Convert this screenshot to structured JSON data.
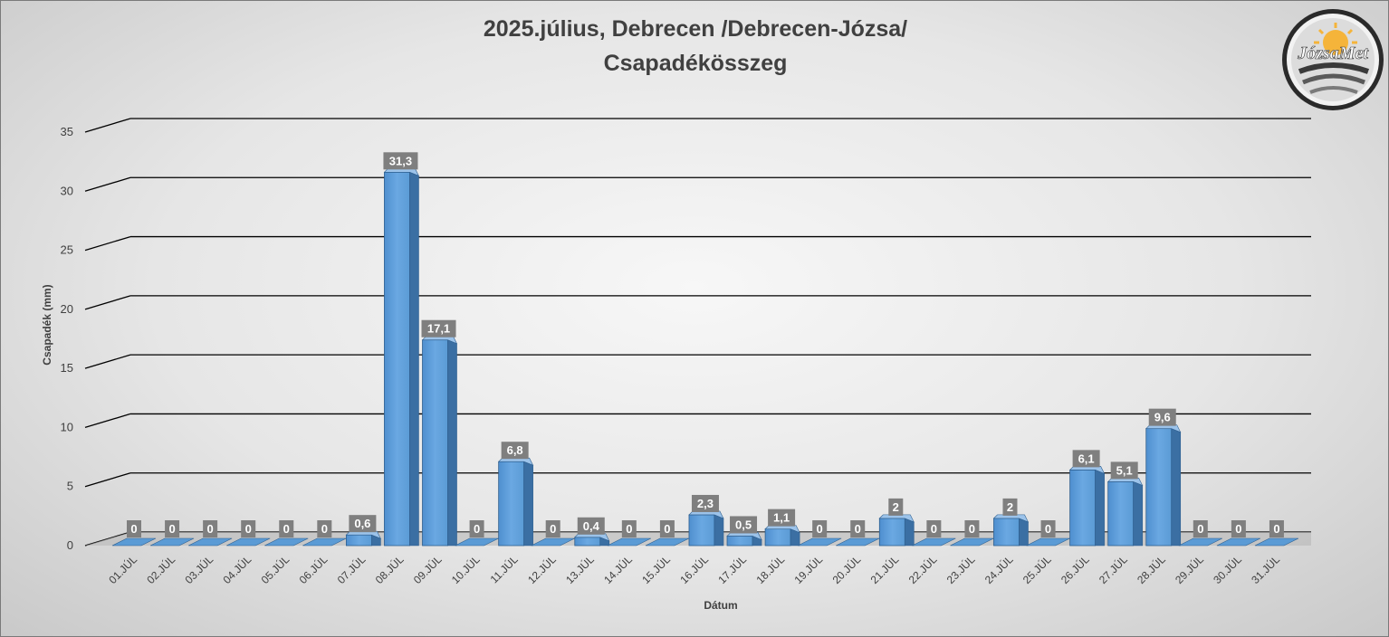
{
  "chart_data": {
    "type": "bar",
    "title": "2025.július, Debrecen /Debrecen-Józsa/",
    "subtitle": "Csapadékösszeg",
    "xlabel": "Dátum",
    "ylabel": "Csapadék (mm)",
    "ylim": [
      0,
      35
    ],
    "yticks": [
      "0",
      "5",
      "10",
      "15",
      "20",
      "25",
      "30",
      "35"
    ],
    "grid": true,
    "categories": [
      "01.JÚL",
      "02.JÚL",
      "03.JÚL",
      "04.JÚL",
      "05.JÚL",
      "06.JÚL",
      "07.JÚL",
      "08.JÚL",
      "09.JÚL",
      "10.JÚL",
      "11.JÚL",
      "12.JÚL",
      "13.JÚL",
      "14.JÚL",
      "15.JÚL",
      "16.JÚL",
      "17.JÚL",
      "18.JÚL",
      "19.JÚL",
      "20.JÚL",
      "21.JÚL",
      "22.JÚL",
      "23.JÚL",
      "24.JÚL",
      "25.JÚL",
      "26.JÚL",
      "27.JÚL",
      "28.JÚL",
      "29.JÚL",
      "30.JÚL",
      "31.JÚL"
    ],
    "values": [
      0,
      0,
      0,
      0,
      0,
      0,
      0.6,
      31.3,
      17.1,
      0,
      6.8,
      0,
      0.4,
      0,
      0,
      2.3,
      0.5,
      1.1,
      0,
      0,
      2,
      0,
      0,
      2,
      0,
      6.1,
      5.1,
      9.6,
      0,
      0,
      0
    ],
    "data_labels": [
      "0",
      "0",
      "0",
      "0",
      "0",
      "0",
      "0,6",
      "31,3",
      "17,1",
      "0",
      "6,8",
      "0",
      "0,4",
      "0",
      "0",
      "2,3",
      "0,5",
      "1,1",
      "0",
      "0",
      "2",
      "0",
      "0",
      "2",
      "0",
      "6,1",
      "5,1",
      "9,6",
      "0",
      "0",
      "0"
    ],
    "bar_color": "#5b9bd5"
  },
  "logo": {
    "text": "JózsaMet"
  }
}
